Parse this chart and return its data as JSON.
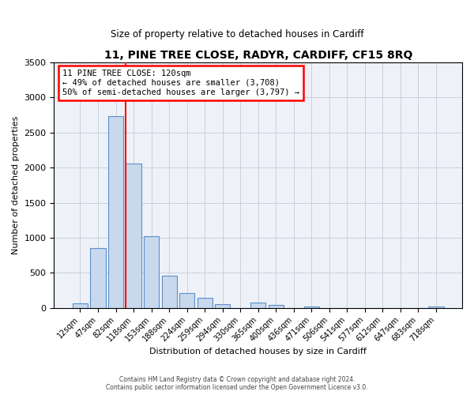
{
  "title": "11, PINE TREE CLOSE, RADYR, CARDIFF, CF15 8RQ",
  "subtitle": "Size of property relative to detached houses in Cardiff",
  "xlabel": "Distribution of detached houses by size in Cardiff",
  "ylabel": "Number of detached properties",
  "footer_line1": "Contains HM Land Registry data © Crown copyright and database right 2024.",
  "footer_line2": "Contains public sector information licensed under the Open Government Licence v3.0.",
  "bar_labels": [
    "12sqm",
    "47sqm",
    "82sqm",
    "118sqm",
    "153sqm",
    "188sqm",
    "224sqm",
    "259sqm",
    "294sqm",
    "330sqm",
    "365sqm",
    "400sqm",
    "436sqm",
    "471sqm",
    "506sqm",
    "541sqm",
    "577sqm",
    "612sqm",
    "647sqm",
    "683sqm",
    "718sqm"
  ],
  "bar_values": [
    60,
    850,
    2730,
    2060,
    1020,
    455,
    210,
    145,
    55,
    0,
    75,
    40,
    0,
    25,
    0,
    0,
    0,
    0,
    0,
    0,
    25
  ],
  "bar_color": "#c9d9ed",
  "bar_edge_color": "#5b8fc9",
  "vline_x": 2.575,
  "vline_color": "red",
  "ylim": [
    0,
    3500
  ],
  "yticks": [
    0,
    500,
    1000,
    1500,
    2000,
    2500,
    3000,
    3500
  ],
  "annotation_title": "11 PINE TREE CLOSE: 120sqm",
  "annotation_line1": "← 49% of detached houses are smaller (3,708)",
  "annotation_line2": "50% of semi-detached houses are larger (3,797) →",
  "annotation_box_color": "#ffffff",
  "annotation_box_edge_color": "red",
  "bg_color": "#ffffff",
  "ax_bg_color": "#eef2f8",
  "grid_color": "#c8d0dc"
}
